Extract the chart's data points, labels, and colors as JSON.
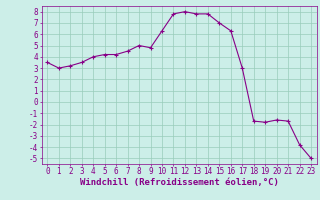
{
  "x": [
    0,
    1,
    2,
    3,
    4,
    5,
    6,
    7,
    8,
    9,
    10,
    11,
    12,
    13,
    14,
    15,
    16,
    17,
    18,
    19,
    20,
    21,
    22,
    23
  ],
  "y": [
    3.5,
    3.0,
    3.2,
    3.5,
    4.0,
    4.2,
    4.2,
    4.5,
    5.0,
    4.8,
    6.3,
    7.8,
    8.0,
    7.8,
    7.8,
    7.0,
    6.3,
    3.0,
    -1.7,
    -1.8,
    -1.6,
    -1.7,
    -3.8,
    -5.0
  ],
  "line_color": "#880088",
  "marker": "+",
  "marker_color": "#880088",
  "bg_color": "#cceee8",
  "grid_color": "#99ccbb",
  "xlabel": "Windchill (Refroidissement éolien,°C)",
  "xlabel_color": "#880088",
  "xlim": [
    -0.5,
    23.5
  ],
  "ylim": [
    -5.5,
    8.5
  ],
  "xticks": [
    0,
    1,
    2,
    3,
    4,
    5,
    6,
    7,
    8,
    9,
    10,
    11,
    12,
    13,
    14,
    15,
    16,
    17,
    18,
    19,
    20,
    21,
    22,
    23
  ],
  "yticks": [
    -5,
    -4,
    -3,
    -2,
    -1,
    0,
    1,
    2,
    3,
    4,
    5,
    6,
    7,
    8
  ],
  "tick_color": "#880088",
  "tick_fontsize": 5.5,
  "xlabel_fontsize": 6.5
}
